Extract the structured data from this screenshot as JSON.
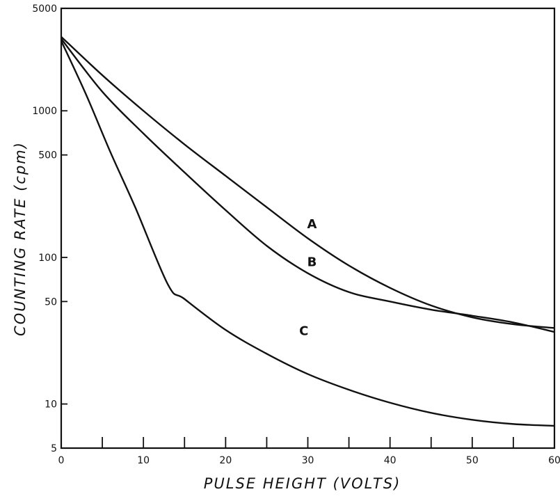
{
  "chart_data": {
    "type": "line",
    "xlabel": "PULSE HEIGHT (VOLTS)",
    "ylabel": "COUNTING RATE (cpm)",
    "xlim": [
      0,
      60
    ],
    "ylim": [
      5,
      5000
    ],
    "yscale": "log",
    "grid": false,
    "x_ticks": [
      0,
      10,
      20,
      30,
      40,
      50,
      60
    ],
    "x_tick_labels": [
      "0",
      "10",
      "20",
      "30",
      "40",
      "50",
      "60"
    ],
    "x_minor_ticks": [
      5,
      15,
      25,
      35,
      45,
      55
    ],
    "y_ticks": [
      5000,
      1000,
      500,
      100,
      50,
      10,
      5
    ],
    "y_tick_labels": [
      "5000",
      "1000",
      "500",
      "100",
      "50",
      "10",
      "5"
    ],
    "series": [
      {
        "name": "A",
        "label_at": [
          30,
          145
        ],
        "x": [
          0,
          5,
          10,
          15,
          20,
          25,
          30,
          35,
          40,
          45,
          50,
          55,
          60
        ],
        "y": [
          3200,
          1750,
          1000,
          590,
          360,
          220,
          135,
          88,
          62,
          47,
          39,
          35,
          33
        ]
      },
      {
        "name": "B",
        "label_at": [
          30,
          80
        ],
        "x": [
          0,
          5,
          10,
          15,
          20,
          25,
          30,
          35,
          40,
          45,
          50,
          55,
          60
        ],
        "y": [
          3100,
          1350,
          700,
          380,
          210,
          120,
          78,
          58,
          50,
          44,
          40,
          36,
          31
        ]
      },
      {
        "name": "C",
        "label_at": [
          29,
          27
        ],
        "x": [
          0,
          3,
          6,
          9,
          13,
          15,
          20,
          25,
          30,
          35,
          40,
          45,
          50,
          55,
          60
        ],
        "y": [
          3000,
          1300,
          520,
          220,
          65,
          52,
          32,
          22,
          16,
          12.5,
          10.2,
          8.7,
          7.8,
          7.3,
          7.1
        ]
      }
    ]
  }
}
